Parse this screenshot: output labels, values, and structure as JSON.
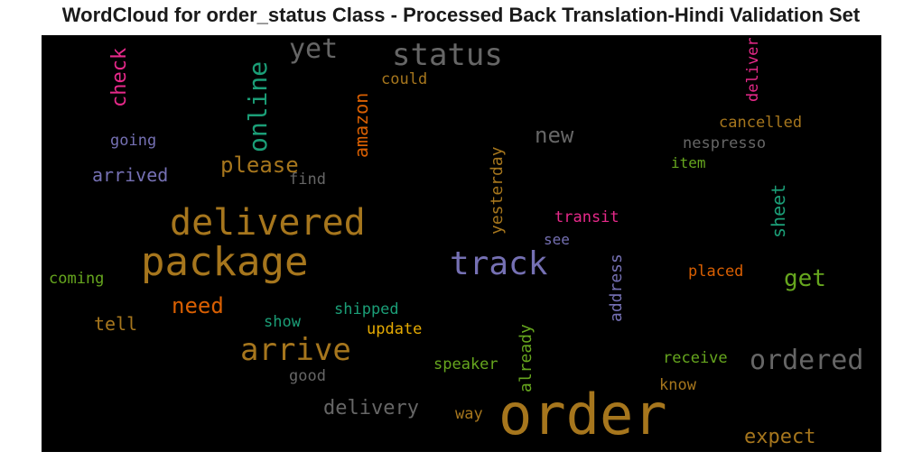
{
  "chart_data": {
    "type": "wordcloud",
    "title": "WordCloud for order_status Class - Processed Back Translation-Hindi Validation Set",
    "background": "#000000",
    "words": [
      {
        "text": "order",
        "color": "#a6761d"
      },
      {
        "text": "package",
        "color": "#a6761d"
      },
      {
        "text": "delivered",
        "color": "#a6761d"
      },
      {
        "text": "track",
        "color": "#7570b3"
      },
      {
        "text": "status",
        "color": "#666666"
      },
      {
        "text": "arrive",
        "color": "#a6761d"
      },
      {
        "text": "ordered",
        "color": "#666666"
      },
      {
        "text": "online",
        "color": "#1b9e77"
      },
      {
        "text": "yet",
        "color": "#666666"
      },
      {
        "text": "please",
        "color": "#a6761d"
      },
      {
        "text": "new",
        "color": "#666666"
      },
      {
        "text": "need",
        "color": "#d95f02"
      },
      {
        "text": "get",
        "color": "#66a61e"
      },
      {
        "text": "delivery",
        "color": "#666666"
      },
      {
        "text": "expect",
        "color": "#a6761d"
      },
      {
        "text": "check",
        "color": "#e7298a"
      },
      {
        "text": "amazon",
        "color": "#d95f02"
      },
      {
        "text": "sheet",
        "color": "#1b9e77"
      },
      {
        "text": "arrived",
        "color": "#7570b3"
      },
      {
        "text": "tell",
        "color": "#a6761d"
      },
      {
        "text": "address",
        "color": "#7570b3"
      },
      {
        "text": "yesterday",
        "color": "#a6761d"
      },
      {
        "text": "already",
        "color": "#66a61e"
      },
      {
        "text": "deliver",
        "color": "#e7298a"
      },
      {
        "text": "cancelled",
        "color": "#a6761d"
      },
      {
        "text": "nespresso",
        "color": "#666666"
      },
      {
        "text": "could",
        "color": "#a6761d"
      },
      {
        "text": "going",
        "color": "#7570b3"
      },
      {
        "text": "find",
        "color": "#666666"
      },
      {
        "text": "item",
        "color": "#66a61e"
      },
      {
        "text": "transit",
        "color": "#e7298a"
      },
      {
        "text": "see",
        "color": "#7570b3"
      },
      {
        "text": "placed",
        "color": "#d95f02"
      },
      {
        "text": "coming",
        "color": "#66a61e"
      },
      {
        "text": "shipped",
        "color": "#1b9e77"
      },
      {
        "text": "show",
        "color": "#1b9e77"
      },
      {
        "text": "update",
        "color": "#e6ab02"
      },
      {
        "text": "receive",
        "color": "#66a61e"
      },
      {
        "text": "speaker",
        "color": "#66a61e"
      },
      {
        "text": "good",
        "color": "#666666"
      },
      {
        "text": "know",
        "color": "#a6761d"
      },
      {
        "text": "way",
        "color": "#a6761d"
      }
    ]
  }
}
